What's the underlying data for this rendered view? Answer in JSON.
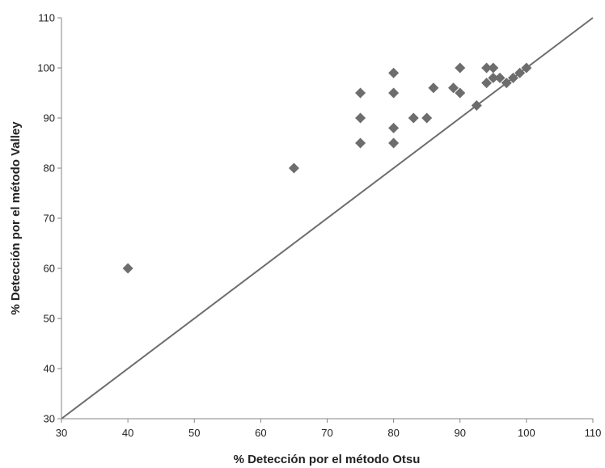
{
  "chart_data": {
    "type": "scatter",
    "title": "",
    "xlabel": "% Detección por el método Otsu",
    "ylabel": "% Detección por el método Valley",
    "xlim": [
      30,
      110
    ],
    "ylim": [
      30,
      110
    ],
    "xticks": [
      30,
      40,
      50,
      60,
      70,
      80,
      90,
      100,
      110
    ],
    "yticks": [
      30,
      40,
      50,
      60,
      70,
      80,
      90,
      100,
      110
    ],
    "grid": false,
    "legend": "none",
    "marker": "diamond",
    "marker_color": "#6d6d6d",
    "line_color": "#6d6d6d",
    "reference_line": {
      "x": [
        30,
        110
      ],
      "y": [
        30,
        110
      ]
    },
    "series": [
      {
        "points": [
          {
            "x": 40,
            "y": 60
          },
          {
            "x": 65,
            "y": 80
          },
          {
            "x": 75,
            "y": 95
          },
          {
            "x": 75,
            "y": 90
          },
          {
            "x": 75,
            "y": 85
          },
          {
            "x": 80,
            "y": 99
          },
          {
            "x": 80,
            "y": 95
          },
          {
            "x": 80,
            "y": 88
          },
          {
            "x": 80,
            "y": 85
          },
          {
            "x": 83,
            "y": 90
          },
          {
            "x": 85,
            "y": 90
          },
          {
            "x": 86,
            "y": 96
          },
          {
            "x": 89,
            "y": 96
          },
          {
            "x": 90,
            "y": 100
          },
          {
            "x": 90,
            "y": 95
          },
          {
            "x": 92.5,
            "y": 92.5
          },
          {
            "x": 94,
            "y": 100
          },
          {
            "x": 94,
            "y": 97
          },
          {
            "x": 95,
            "y": 100
          },
          {
            "x": 95,
            "y": 98
          },
          {
            "x": 96,
            "y": 98
          },
          {
            "x": 97,
            "y": 97
          },
          {
            "x": 98,
            "y": 98
          },
          {
            "x": 99,
            "y": 99
          },
          {
            "x": 100,
            "y": 100
          }
        ]
      }
    ]
  }
}
